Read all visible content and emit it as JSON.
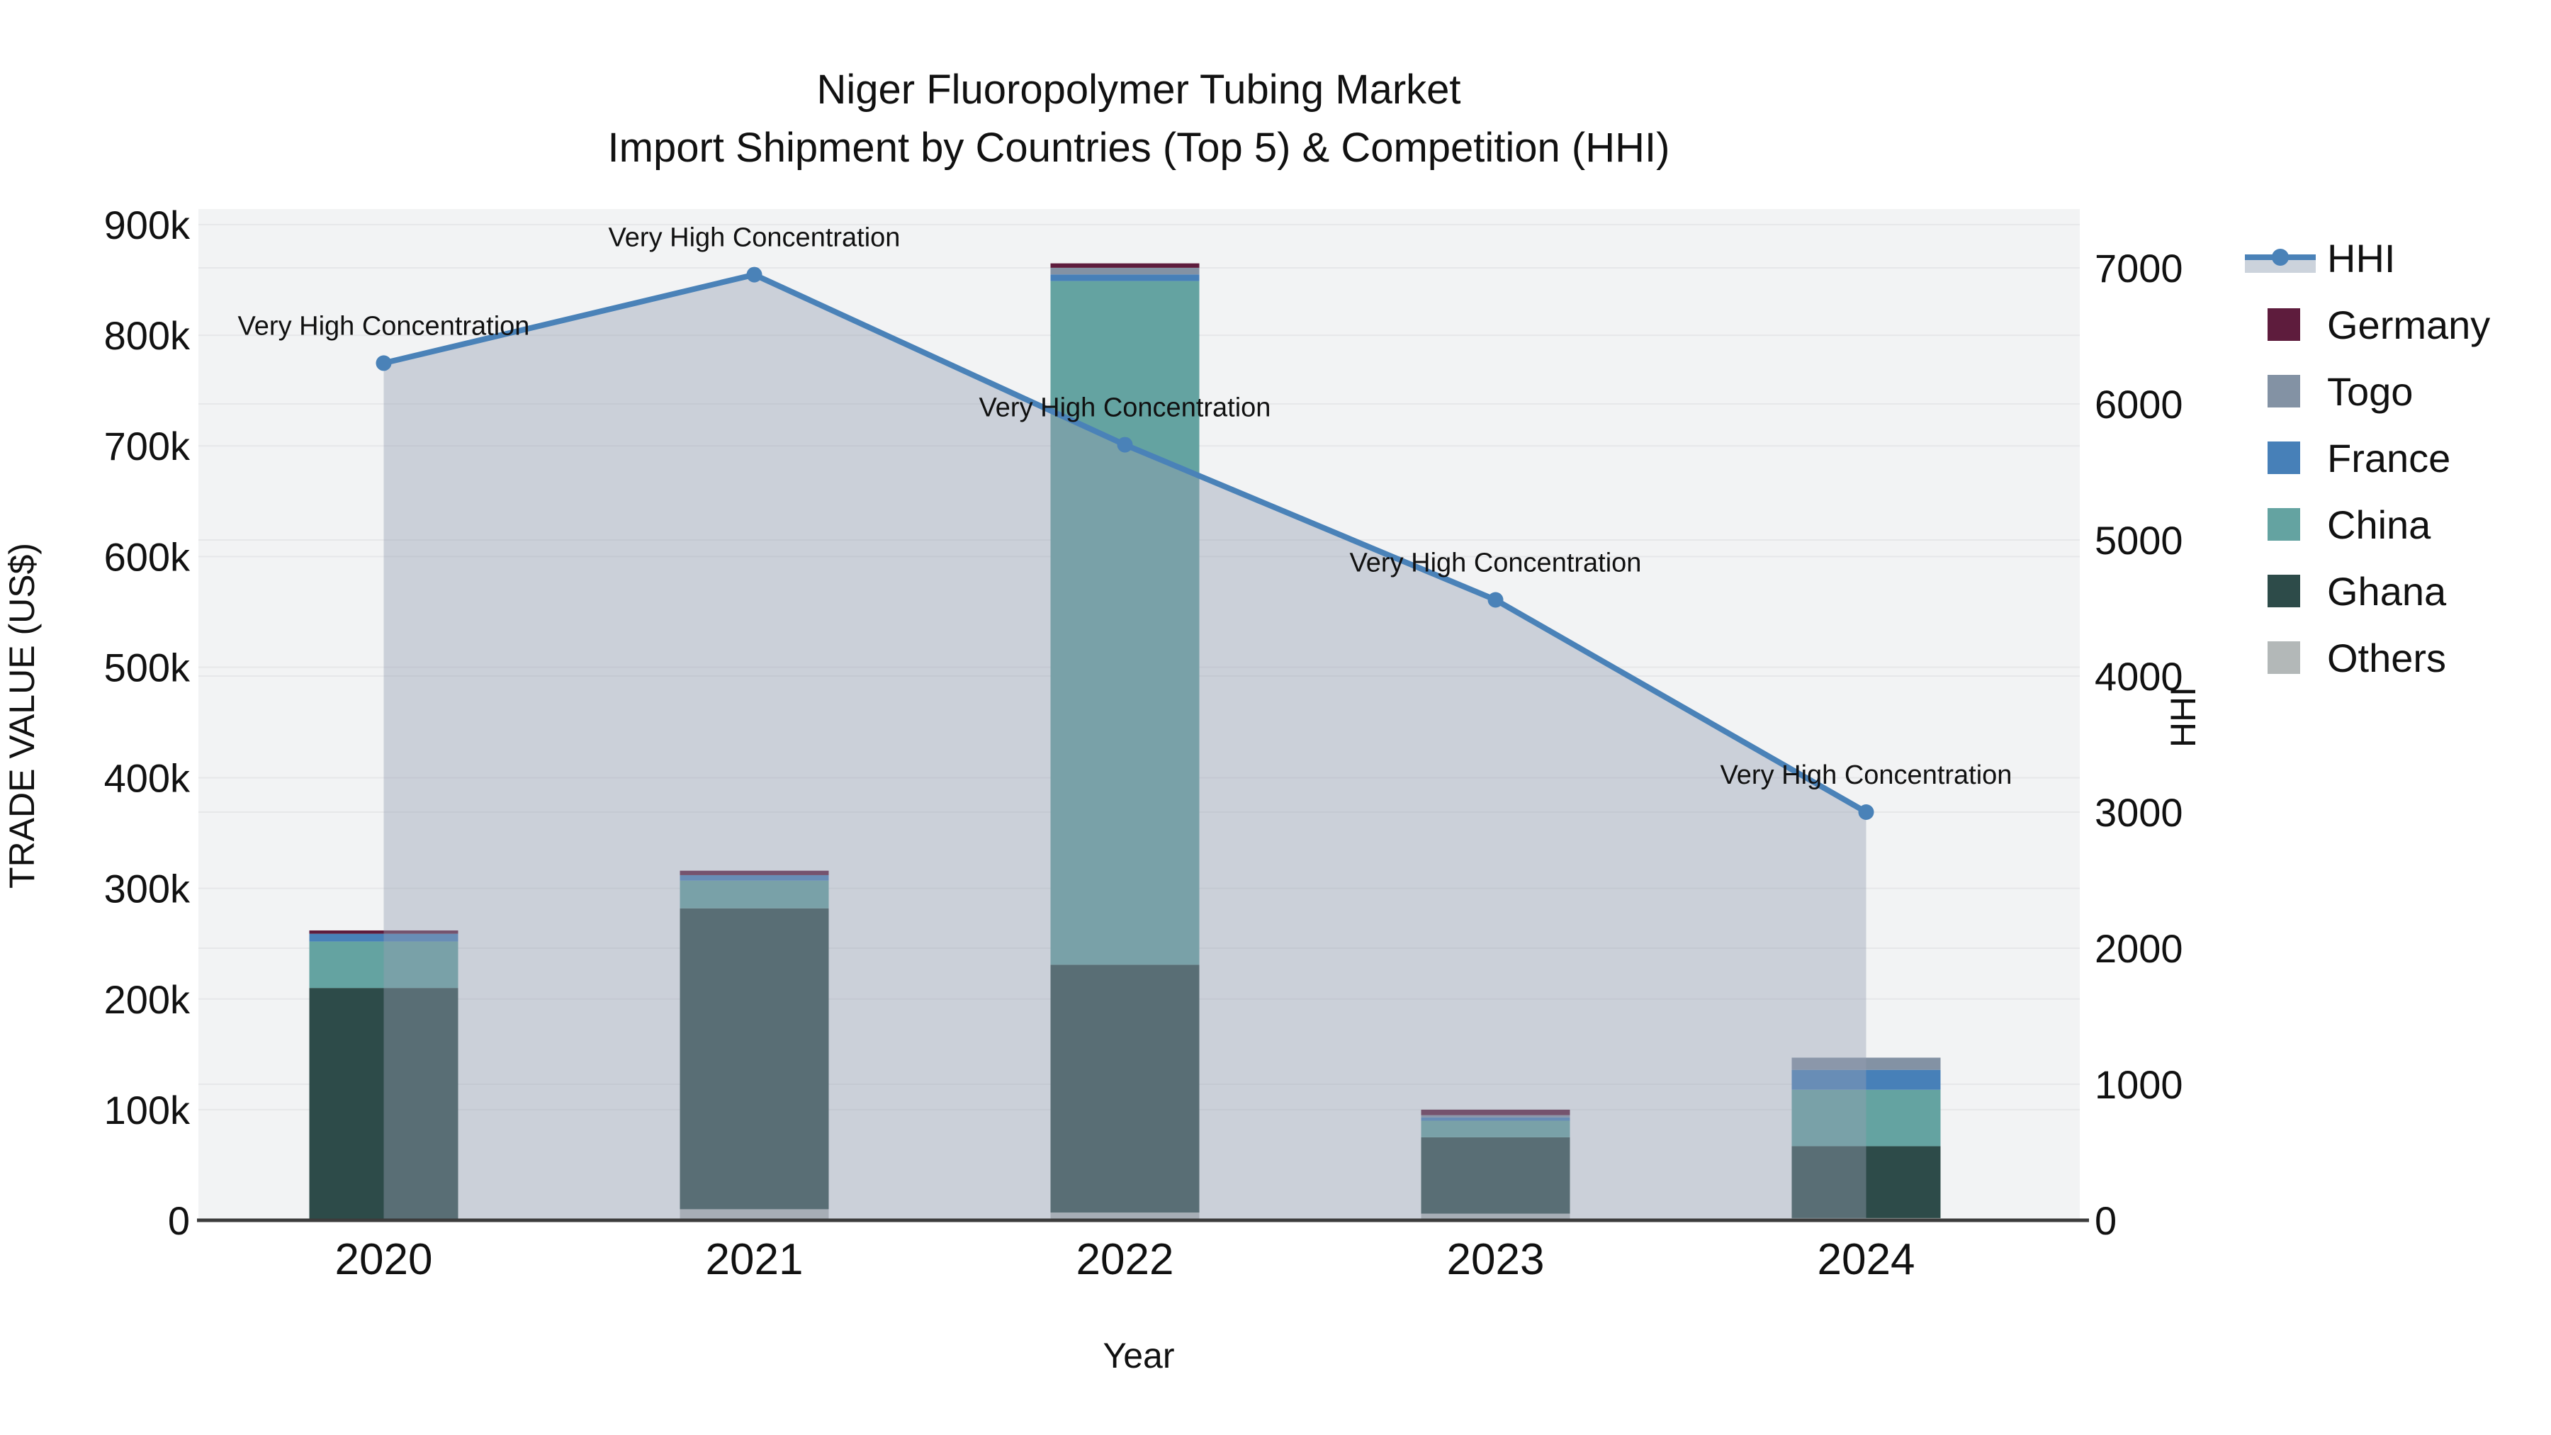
{
  "chart": {
    "title_line1": "Niger Fluoropolymer Tubing Market",
    "title_line2": "Import Shipment by Countries (Top 5) & Competition (HHI)",
    "x_axis_label": "Year",
    "y_axis_left_label": "TRADE VALUE (US$)",
    "y_axis_right_label": "HHI"
  },
  "chart_data": {
    "type": "bar+line",
    "title": "Niger Fluoropolymer Tubing Market — Import Shipment by Countries (Top 5) & Competition (HHI)",
    "xlabel": "Year",
    "ylabel_left": "TRADE VALUE (US$)",
    "ylabel_right": "HHI",
    "categories": [
      "2020",
      "2021",
      "2022",
      "2023",
      "2024"
    ],
    "stack_order_bottom_to_top": [
      "Others",
      "Ghana",
      "China",
      "France",
      "Togo",
      "Germany"
    ],
    "bar_series": [
      {
        "name": "Others",
        "color": "#b3b8b8",
        "values": [
          0,
          10000,
          7000,
          6000,
          2000
        ]
      },
      {
        "name": "Ghana",
        "color": "#2d4b49",
        "values": [
          210000,
          272000,
          224000,
          69000,
          65000
        ]
      },
      {
        "name": "China",
        "color": "#64a3a1",
        "values": [
          42000,
          25000,
          618000,
          15000,
          51000
        ]
      },
      {
        "name": "France",
        "color": "#4780b8",
        "values": [
          7000,
          5000,
          6000,
          3000,
          18000
        ]
      },
      {
        "name": "Togo",
        "color": "#8392a4",
        "values": [
          0,
          0,
          6000,
          2000,
          11000
        ]
      },
      {
        "name": "Germany",
        "color": "#5e1c3d",
        "values": [
          3000,
          4000,
          4000,
          5000,
          0
        ]
      }
    ],
    "bar_totals": [
      262000,
      316000,
      865000,
      100000,
      147000
    ],
    "line_series": {
      "name": "HHI",
      "values": [
        6300,
        6950,
        5700,
        4560,
        3000
      ],
      "color": "#4a82b8",
      "area_fill": "rgba(150,160,178,0.42)"
    },
    "annotation_text": "Very High Concentration",
    "y_left": {
      "max": 900000,
      "ticks": [
        0,
        100000,
        200000,
        300000,
        400000,
        500000,
        600000,
        700000,
        800000,
        900000
      ],
      "tick_labels": [
        "0",
        "100k",
        "200k",
        "300k",
        "400k",
        "500k",
        "600k",
        "700k",
        "800k",
        "900k"
      ]
    },
    "y_right": {
      "max": 7000,
      "ticks": [
        0,
        1000,
        2000,
        3000,
        4000,
        5000,
        6000,
        7000
      ],
      "tick_labels": [
        "0",
        "1000",
        "2000",
        "3000",
        "4000",
        "5000",
        "6000",
        "7000"
      ]
    },
    "grid": true,
    "legend_position": "top-right"
  },
  "legend": {
    "items": [
      {
        "label": "HHI",
        "kind": "line",
        "color": "#4a82b8",
        "band_color": "#ccd3dc"
      },
      {
        "label": "Germany",
        "kind": "swatch",
        "color": "#5e1c3d"
      },
      {
        "label": "Togo",
        "kind": "swatch",
        "color": "#8392a4"
      },
      {
        "label": "France",
        "kind": "swatch",
        "color": "#4780b8"
      },
      {
        "label": "China",
        "kind": "swatch",
        "color": "#64a3a1"
      },
      {
        "label": "Ghana",
        "kind": "swatch",
        "color": "#2d4b49"
      },
      {
        "label": "Others",
        "kind": "swatch",
        "color": "#b3b8b8"
      }
    ]
  },
  "colors": {
    "figure_bg": "#ffffff",
    "plot_bg": "#f2f3f4",
    "gridline": "#e6e7e9",
    "axis_line": "#3c3c3c",
    "text": "#111111"
  }
}
